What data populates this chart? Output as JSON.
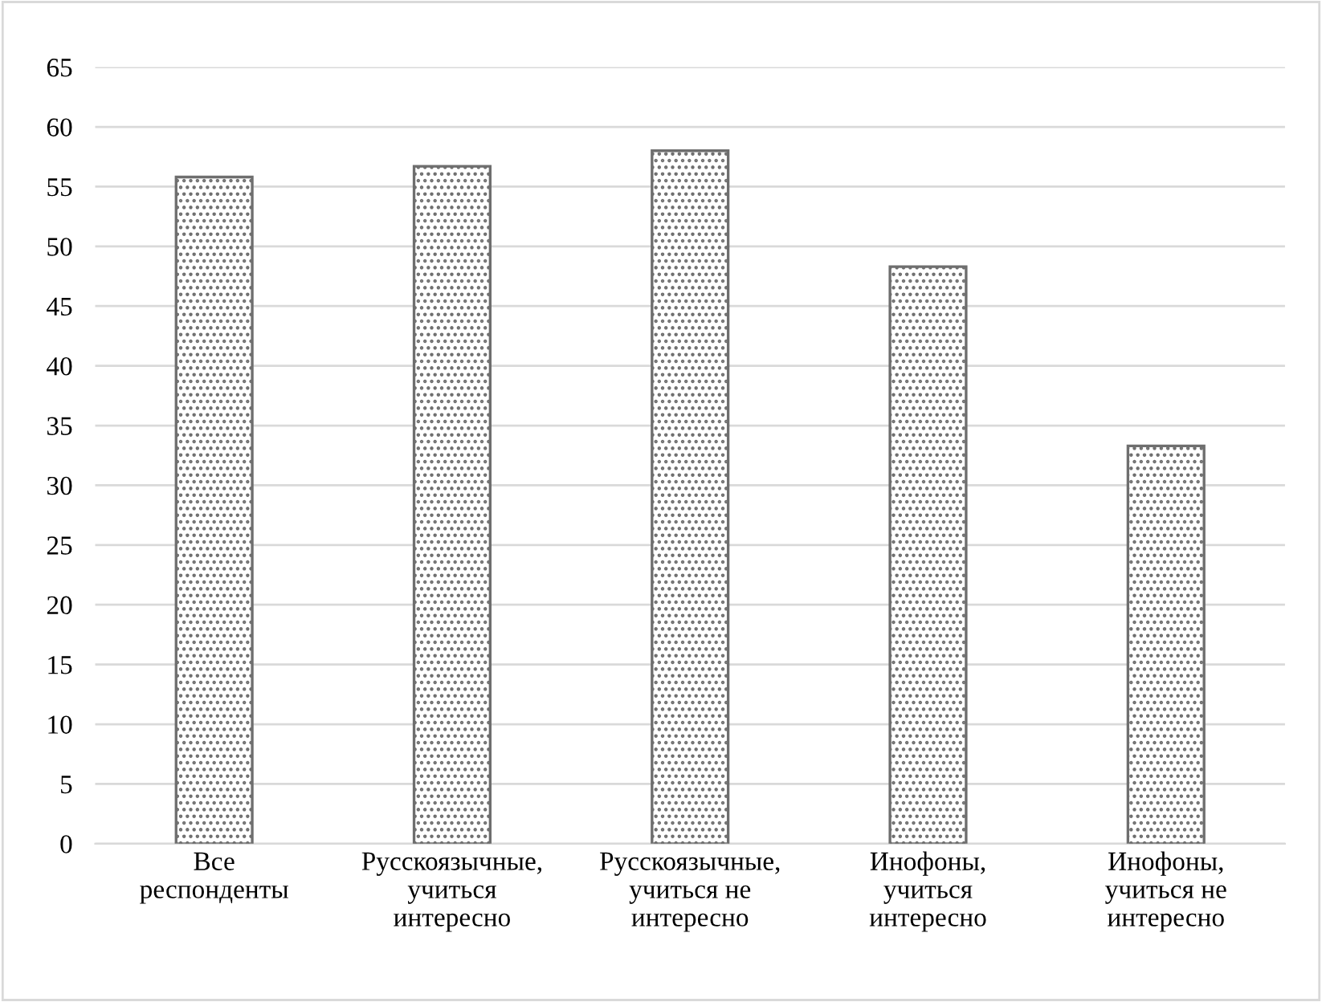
{
  "chart_data": {
    "type": "bar",
    "categories": [
      "Все респонденты",
      "Русскоязычные, учиться интересно",
      "Русскоязычные, учиться не интересно",
      "Инофоны, учиться интересно",
      "Инофоны, учиться не интересно"
    ],
    "values": [
      55.8,
      56.7,
      58.0,
      48.3,
      33.3
    ],
    "color": "#6e6e6e",
    "ylim": [
      0,
      65
    ],
    "yticks": [
      0,
      5,
      10,
      15,
      20,
      25,
      30,
      35,
      40,
      45,
      50,
      55,
      60,
      65
    ],
    "grid": "y",
    "legend": false
  }
}
